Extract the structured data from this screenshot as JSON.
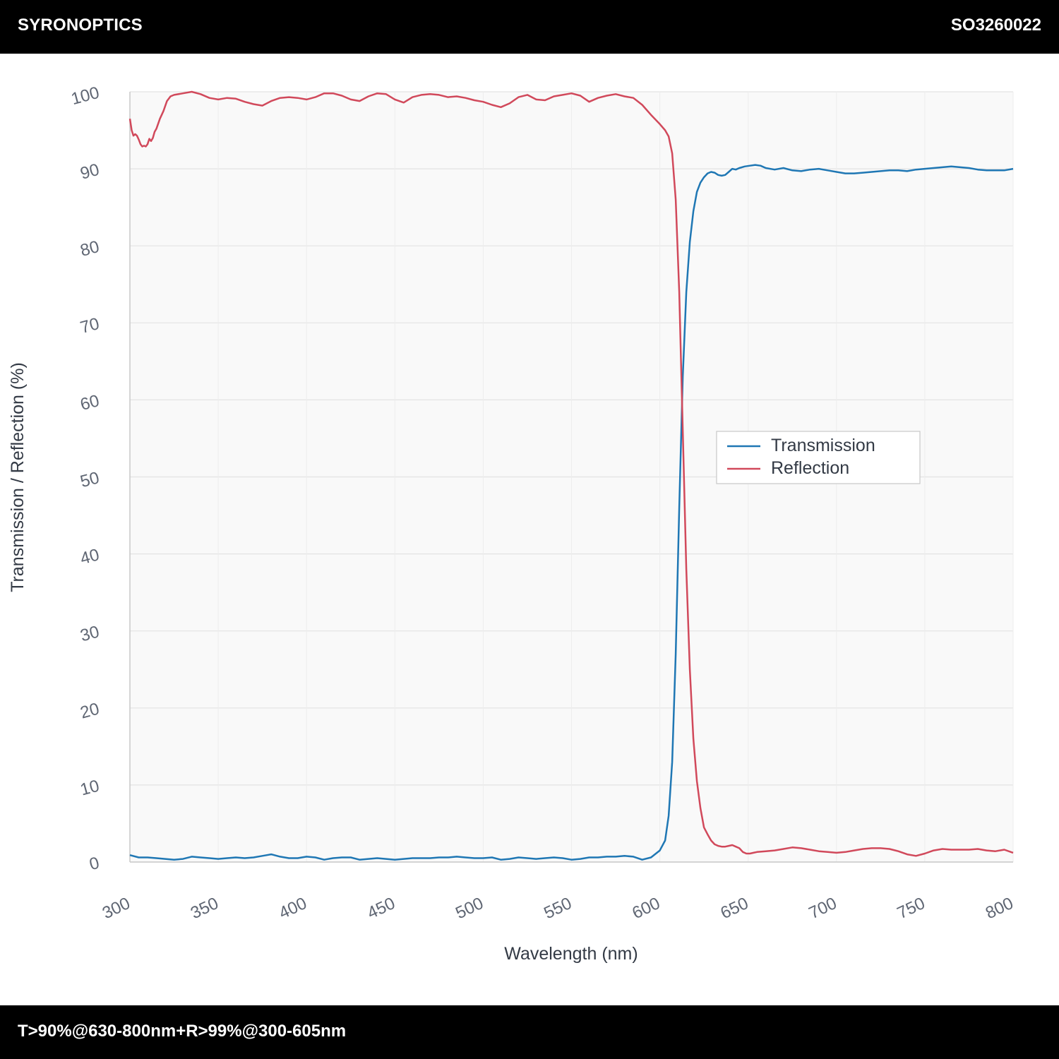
{
  "header": {
    "brand": "SYRONOPTICS",
    "part_number": "SO3260022"
  },
  "footer": {
    "spec": "T>90%@630-800nm+R>99%@300-605nm"
  },
  "colors": {
    "transmission": "#1f77b4",
    "reflection": "#d1495b",
    "plot_background": "#f9f9f9",
    "grid": "#e3e3e3"
  },
  "chart_data": {
    "type": "line",
    "title": "",
    "xlabel": "Wavelength (nm)",
    "ylabel": "Transmission / Reflection (%)",
    "xlim": [
      300,
      800
    ],
    "ylim": [
      0,
      100
    ],
    "x_ticks": [
      "300",
      "350",
      "400",
      "450",
      "500",
      "550",
      "600",
      "650",
      "700",
      "750",
      "800"
    ],
    "y_ticks": [
      "0",
      "10",
      "20",
      "30",
      "40",
      "50",
      "60",
      "70",
      "80",
      "90",
      "100"
    ],
    "grid": true,
    "legend_position": "center-right",
    "series": [
      {
        "name": "Transmission",
        "color": "#1f77b4",
        "x": [
          300,
          305,
          310,
          315,
          320,
          325,
          330,
          335,
          340,
          345,
          350,
          355,
          360,
          365,
          370,
          375,
          380,
          385,
          390,
          395,
          400,
          405,
          410,
          415,
          420,
          425,
          430,
          435,
          440,
          445,
          450,
          455,
          460,
          465,
          470,
          475,
          480,
          485,
          490,
          495,
          500,
          505,
          510,
          515,
          520,
          525,
          530,
          535,
          540,
          545,
          550,
          555,
          560,
          565,
          570,
          575,
          580,
          585,
          590,
          595,
          600,
          603,
          605,
          607,
          609,
          611,
          613,
          615,
          617,
          619,
          621,
          623,
          625,
          627,
          629,
          631,
          633,
          635,
          637,
          639,
          641,
          643,
          645,
          648,
          651,
          654,
          657,
          660,
          665,
          670,
          675,
          680,
          685,
          690,
          695,
          700,
          705,
          710,
          715,
          720,
          725,
          730,
          735,
          740,
          745,
          750,
          755,
          760,
          765,
          770,
          775,
          780,
          785,
          790,
          795,
          800
        ],
        "y": [
          0.9,
          0.6,
          0.6,
          0.5,
          0.4,
          0.3,
          0.4,
          0.7,
          0.6,
          0.5,
          0.4,
          0.5,
          0.6,
          0.5,
          0.6,
          0.8,
          1.0,
          0.7,
          0.5,
          0.5,
          0.7,
          0.6,
          0.3,
          0.5,
          0.6,
          0.6,
          0.3,
          0.4,
          0.5,
          0.4,
          0.3,
          0.4,
          0.5,
          0.5,
          0.5,
          0.6,
          0.6,
          0.7,
          0.6,
          0.5,
          0.5,
          0.6,
          0.3,
          0.4,
          0.6,
          0.5,
          0.4,
          0.5,
          0.6,
          0.5,
          0.3,
          0.4,
          0.6,
          0.6,
          0.7,
          0.7,
          0.8,
          0.7,
          0.3,
          0.6,
          1.5,
          2.8,
          6.0,
          13.0,
          27.0,
          46.0,
          63.0,
          74.0,
          80.5,
          84.5,
          87.0,
          88.2,
          88.9,
          89.4,
          89.6,
          89.5,
          89.2,
          89.1,
          89.2,
          89.6,
          90.0,
          89.9,
          90.1,
          90.3,
          90.4,
          90.5,
          90.4,
          90.1,
          89.9,
          90.1,
          89.8,
          89.7,
          89.9,
          90.0,
          89.8,
          89.6,
          89.4,
          89.4,
          89.5,
          89.6,
          89.7,
          89.8,
          89.8,
          89.7,
          89.9,
          90.0,
          90.1,
          90.2,
          90.3,
          90.2,
          90.1,
          89.9,
          89.8,
          89.8,
          89.8,
          90.0
        ]
      },
      {
        "name": "Reflection",
        "color": "#d1495b",
        "x": [
          300,
          301,
          302,
          303,
          304,
          305,
          306,
          307,
          308,
          309,
          310,
          311,
          312,
          313,
          314,
          315,
          317,
          319,
          321,
          323,
          325,
          330,
          335,
          340,
          345,
          350,
          355,
          360,
          365,
          370,
          375,
          380,
          385,
          390,
          395,
          400,
          405,
          410,
          415,
          420,
          425,
          430,
          435,
          440,
          445,
          450,
          455,
          460,
          465,
          470,
          475,
          480,
          485,
          490,
          495,
          500,
          505,
          510,
          515,
          520,
          525,
          530,
          535,
          540,
          545,
          550,
          555,
          560,
          565,
          570,
          575,
          580,
          585,
          590,
          595,
          600,
          603,
          605,
          607,
          609,
          611,
          613,
          615,
          617,
          619,
          621,
          623,
          625,
          627,
          629,
          631,
          633,
          635,
          637,
          639,
          641,
          643,
          645,
          647,
          649,
          651,
          653,
          655,
          660,
          665,
          670,
          675,
          680,
          685,
          690,
          695,
          700,
          705,
          710,
          715,
          720,
          725,
          730,
          735,
          740,
          745,
          750,
          755,
          760,
          765,
          770,
          775,
          780,
          785,
          790,
          795,
          800
        ],
        "y": [
          96.5,
          95.0,
          94.3,
          94.5,
          94.3,
          93.8,
          93.2,
          92.9,
          93.0,
          92.9,
          93.2,
          93.9,
          93.6,
          94.0,
          94.8,
          95.2,
          96.5,
          97.5,
          98.8,
          99.4,
          99.6,
          99.8,
          100.0,
          99.7,
          99.2,
          99.0,
          99.2,
          99.1,
          98.7,
          98.4,
          98.2,
          98.8,
          99.2,
          99.3,
          99.2,
          99.0,
          99.3,
          99.8,
          99.8,
          99.5,
          99.0,
          98.8,
          99.4,
          99.8,
          99.7,
          99.0,
          98.6,
          99.3,
          99.6,
          99.7,
          99.6,
          99.3,
          99.4,
          99.2,
          98.9,
          98.7,
          98.3,
          98.0,
          98.5,
          99.3,
          99.6,
          99.0,
          98.9,
          99.4,
          99.6,
          99.8,
          99.5,
          98.7,
          99.2,
          99.5,
          99.7,
          99.4,
          99.2,
          98.3,
          97.0,
          95.8,
          95.0,
          94.2,
          92.0,
          86.0,
          74.0,
          56.0,
          38.0,
          25.0,
          16.0,
          10.5,
          7.0,
          4.5,
          3.6,
          2.8,
          2.3,
          2.1,
          2.0,
          2.0,
          2.1,
          2.2,
          2.0,
          1.8,
          1.3,
          1.1,
          1.1,
          1.2,
          1.3,
          1.4,
          1.5,
          1.7,
          1.9,
          1.8,
          1.6,
          1.4,
          1.3,
          1.2,
          1.3,
          1.5,
          1.7,
          1.8,
          1.8,
          1.7,
          1.4,
          1.0,
          0.8,
          1.1,
          1.5,
          1.7,
          1.6,
          1.6,
          1.6,
          1.7,
          1.5,
          1.4,
          1.6,
          1.2
        ]
      }
    ]
  }
}
